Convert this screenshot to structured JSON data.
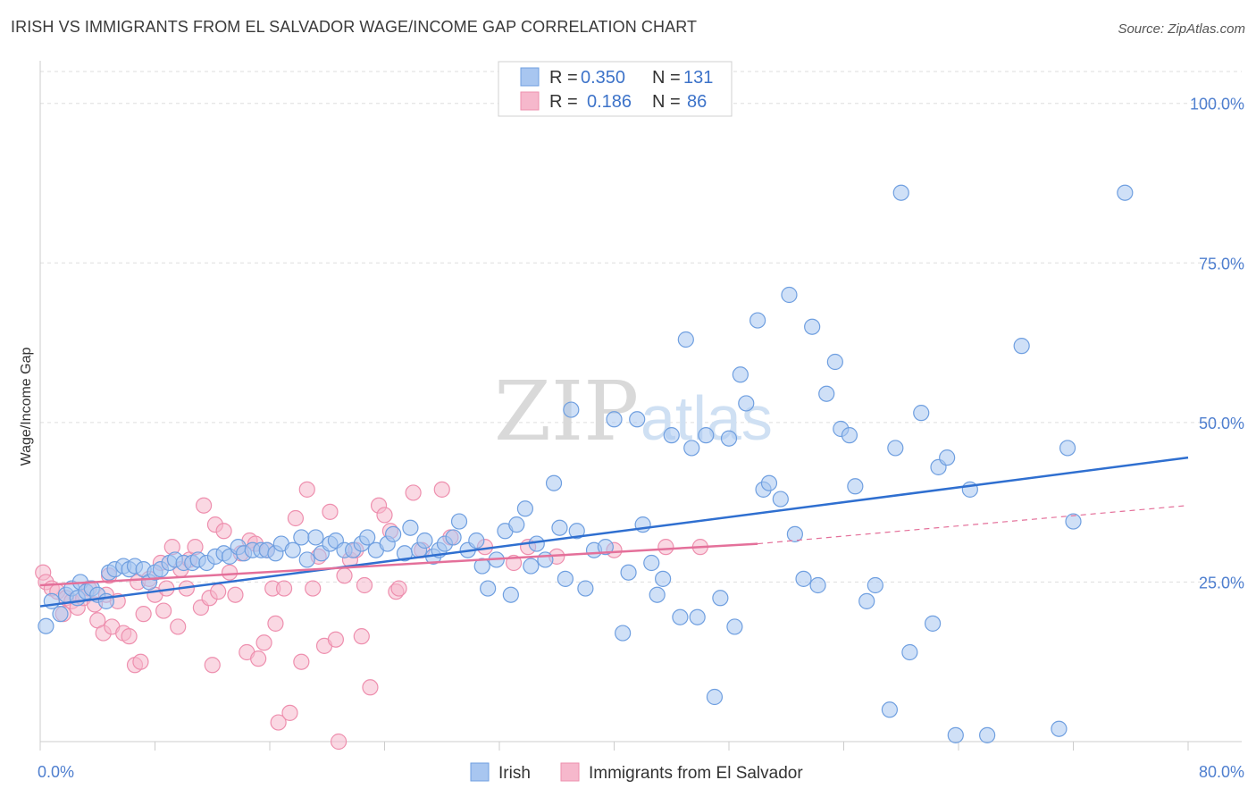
{
  "title": "IRISH VS IMMIGRANTS FROM EL SALVADOR WAGE/INCOME GAP CORRELATION CHART",
  "source": "Source: ZipAtlas.com",
  "watermark": {
    "part1": "ZIP",
    "part2": "atlas"
  },
  "colors": {
    "irish_fill": "#a8c6f0",
    "irish_stroke": "#6f9fe0",
    "irish_line": "#2f6fd0",
    "salv_fill": "#f6b8cc",
    "salv_stroke": "#ee8fae",
    "salv_line": "#e4709a",
    "grid": "#dddddd",
    "axis_text": "#4f7fcf"
  },
  "legend": {
    "r_label": "R =",
    "n_label": "N =",
    "irish": {
      "r": "0.350",
      "n": "131"
    },
    "salv": {
      "r": "0.186",
      "n": "86"
    }
  },
  "chart_data": {
    "type": "scatter",
    "ylabel": "Wage/Income Gap",
    "xlim": [
      0,
      80
    ],
    "ylim": [
      0,
      105
    ],
    "x_tick_labels": [
      "0.0%",
      "80.0%"
    ],
    "y_ticks": [
      {
        "value": 25,
        "label": "25.0%"
      },
      {
        "value": 50,
        "label": "50.0%"
      },
      {
        "value": 75,
        "label": "75.0%"
      },
      {
        "value": 100,
        "label": "100.0%"
      }
    ],
    "series": [
      {
        "name": "Irish",
        "trend": {
          "x0": 0,
          "y0": 21.2,
          "x1": 80,
          "y1": 44.5
        },
        "points": [
          [
            0.4,
            18.1
          ],
          [
            0.8,
            22.0
          ],
          [
            1.4,
            20.0
          ],
          [
            1.8,
            23.0
          ],
          [
            2.2,
            24.0
          ],
          [
            2.6,
            22.5
          ],
          [
            2.8,
            25.0
          ],
          [
            3.2,
            23.5
          ],
          [
            3.6,
            24.0
          ],
          [
            4.0,
            23.0
          ],
          [
            4.6,
            22.0
          ],
          [
            4.8,
            26.5
          ],
          [
            5.2,
            27.0
          ],
          [
            5.8,
            27.5
          ],
          [
            6.2,
            27.0
          ],
          [
            6.6,
            27.5
          ],
          [
            7.2,
            27.0
          ],
          [
            7.6,
            25.0
          ],
          [
            8.0,
            26.5
          ],
          [
            8.4,
            27.0
          ],
          [
            9.0,
            28.0
          ],
          [
            9.4,
            28.5
          ],
          [
            10.0,
            28.0
          ],
          [
            10.6,
            28.0
          ],
          [
            11.0,
            28.5
          ],
          [
            11.6,
            28.0
          ],
          [
            12.2,
            29.0
          ],
          [
            12.8,
            29.5
          ],
          [
            13.2,
            29.0
          ],
          [
            13.8,
            30.5
          ],
          [
            14.2,
            29.5
          ],
          [
            14.8,
            30.0
          ],
          [
            15.4,
            30.0
          ],
          [
            15.8,
            30.0
          ],
          [
            16.4,
            29.5
          ],
          [
            16.8,
            31.0
          ],
          [
            17.6,
            30.0
          ],
          [
            18.2,
            32.0
          ],
          [
            18.6,
            28.5
          ],
          [
            19.2,
            32.0
          ],
          [
            19.6,
            29.5
          ],
          [
            20.2,
            31.0
          ],
          [
            20.6,
            31.5
          ],
          [
            21.2,
            30.0
          ],
          [
            21.8,
            30.0
          ],
          [
            22.4,
            31.0
          ],
          [
            22.8,
            32.0
          ],
          [
            23.4,
            30.0
          ],
          [
            24.2,
            31.0
          ],
          [
            24.6,
            32.5
          ],
          [
            25.4,
            29.5
          ],
          [
            25.8,
            33.5
          ],
          [
            26.4,
            30.0
          ],
          [
            26.8,
            31.5
          ],
          [
            27.4,
            29.0
          ],
          [
            27.8,
            30.0
          ],
          [
            28.2,
            31.0
          ],
          [
            28.8,
            32.0
          ],
          [
            29.2,
            34.5
          ],
          [
            29.8,
            30.0
          ],
          [
            30.4,
            31.5
          ],
          [
            30.8,
            27.5
          ],
          [
            31.2,
            24.0
          ],
          [
            31.8,
            28.5
          ],
          [
            32.4,
            33.0
          ],
          [
            32.8,
            23.0
          ],
          [
            33.2,
            34.0
          ],
          [
            33.8,
            36.5
          ],
          [
            34.2,
            27.5
          ],
          [
            34.6,
            31.0
          ],
          [
            35.2,
            28.5
          ],
          [
            35.8,
            40.5
          ],
          [
            36.2,
            33.5
          ],
          [
            36.6,
            25.5
          ],
          [
            37.0,
            52.0
          ],
          [
            37.4,
            33.0
          ],
          [
            38.0,
            24.0
          ],
          [
            38.6,
            30.0
          ],
          [
            39.4,
            30.5
          ],
          [
            40.0,
            50.5
          ],
          [
            40.6,
            17.0
          ],
          [
            41.0,
            26.5
          ],
          [
            41.6,
            50.5
          ],
          [
            42.0,
            34.0
          ],
          [
            42.6,
            28.0
          ],
          [
            43.0,
            23.0
          ],
          [
            43.4,
            25.5
          ],
          [
            44.0,
            48.0
          ],
          [
            44.6,
            19.5
          ],
          [
            45.0,
            63.0
          ],
          [
            45.4,
            46.0
          ],
          [
            45.8,
            19.5
          ],
          [
            46.4,
            48.0
          ],
          [
            47.0,
            7.0
          ],
          [
            47.4,
            22.5
          ],
          [
            48.0,
            47.5
          ],
          [
            48.4,
            18.0
          ],
          [
            48.8,
            57.5
          ],
          [
            49.2,
            53.0
          ],
          [
            50.0,
            66.0
          ],
          [
            50.4,
            39.5
          ],
          [
            50.8,
            40.5
          ],
          [
            51.6,
            38.0
          ],
          [
            52.2,
            70.0
          ],
          [
            52.6,
            32.5
          ],
          [
            53.2,
            25.5
          ],
          [
            53.8,
            65.0
          ],
          [
            54.2,
            24.5
          ],
          [
            54.8,
            54.5
          ],
          [
            55.4,
            59.5
          ],
          [
            55.8,
            49.0
          ],
          [
            56.4,
            48.0
          ],
          [
            56.8,
            40.0
          ],
          [
            57.6,
            22.0
          ],
          [
            58.2,
            24.5
          ],
          [
            59.2,
            5.0
          ],
          [
            59.6,
            46.0
          ],
          [
            60.0,
            86.0
          ],
          [
            60.6,
            14.0
          ],
          [
            61.4,
            51.5
          ],
          [
            62.2,
            18.5
          ],
          [
            62.6,
            43.0
          ],
          [
            63.2,
            44.5
          ],
          [
            63.8,
            1.0
          ],
          [
            64.8,
            39.5
          ],
          [
            66.0,
            1.0
          ],
          [
            68.4,
            62.0
          ],
          [
            71.0,
            2.0
          ],
          [
            71.6,
            46.0
          ],
          [
            72.0,
            34.5
          ],
          [
            75.6,
            86.0
          ]
        ]
      },
      {
        "name": "Immigrants from El Salvador",
        "trend_solid": {
          "x0": 0,
          "y0": 24.5,
          "x1": 50,
          "y1": 31.0
        },
        "trend_dashed": {
          "x0": 50,
          "y0": 31.0,
          "x1": 80,
          "y1": 37.0
        },
        "points": [
          [
            0.2,
            26.5
          ],
          [
            0.4,
            25.0
          ],
          [
            0.8,
            24.0
          ],
          [
            1.2,
            23.5
          ],
          [
            1.6,
            20.0
          ],
          [
            1.8,
            22.5
          ],
          [
            2.2,
            22.0
          ],
          [
            2.6,
            21.0
          ],
          [
            3.0,
            22.5
          ],
          [
            3.4,
            24.0
          ],
          [
            3.8,
            21.5
          ],
          [
            4.0,
            19.0
          ],
          [
            4.4,
            17.0
          ],
          [
            4.6,
            23.0
          ],
          [
            4.8,
            26.0
          ],
          [
            5.0,
            18.0
          ],
          [
            5.4,
            22.0
          ],
          [
            5.8,
            17.0
          ],
          [
            6.2,
            16.5
          ],
          [
            6.6,
            12.0
          ],
          [
            6.8,
            25.0
          ],
          [
            7.0,
            12.5
          ],
          [
            7.2,
            20.0
          ],
          [
            7.6,
            25.5
          ],
          [
            8.0,
            23.0
          ],
          [
            8.4,
            28.0
          ],
          [
            8.6,
            20.5
          ],
          [
            8.8,
            24.0
          ],
          [
            9.2,
            30.5
          ],
          [
            9.6,
            18.0
          ],
          [
            9.8,
            27.0
          ],
          [
            10.2,
            24.0
          ],
          [
            10.4,
            28.5
          ],
          [
            10.8,
            30.5
          ],
          [
            11.2,
            21.0
          ],
          [
            11.4,
            37.0
          ],
          [
            11.8,
            22.5
          ],
          [
            12.0,
            12.0
          ],
          [
            12.2,
            34.0
          ],
          [
            12.4,
            23.5
          ],
          [
            12.8,
            33.0
          ],
          [
            13.2,
            26.5
          ],
          [
            13.6,
            23.0
          ],
          [
            14.0,
            29.5
          ],
          [
            14.4,
            14.0
          ],
          [
            14.6,
            31.5
          ],
          [
            15.0,
            31.0
          ],
          [
            15.2,
            13.0
          ],
          [
            15.6,
            15.5
          ],
          [
            15.8,
            30.0
          ],
          [
            16.2,
            24.0
          ],
          [
            16.4,
            18.5
          ],
          [
            16.6,
            3.0
          ],
          [
            17.0,
            24.0
          ],
          [
            17.4,
            4.5
          ],
          [
            17.8,
            35.0
          ],
          [
            18.2,
            12.5
          ],
          [
            18.6,
            39.5
          ],
          [
            19.0,
            24.0
          ],
          [
            19.4,
            29.0
          ],
          [
            19.8,
            15.0
          ],
          [
            20.2,
            36.0
          ],
          [
            20.6,
            16.0
          ],
          [
            20.8,
            0.0
          ],
          [
            21.2,
            26.0
          ],
          [
            21.6,
            28.5
          ],
          [
            22.0,
            30.0
          ],
          [
            22.4,
            16.5
          ],
          [
            22.6,
            24.5
          ],
          [
            23.0,
            8.5
          ],
          [
            23.6,
            37.0
          ],
          [
            24.0,
            35.5
          ],
          [
            24.4,
            33.0
          ],
          [
            24.8,
            23.5
          ],
          [
            25.0,
            24.0
          ],
          [
            26.0,
            39.0
          ],
          [
            26.6,
            30.0
          ],
          [
            28.0,
            39.5
          ],
          [
            28.6,
            32.0
          ],
          [
            31.0,
            30.5
          ],
          [
            33.0,
            28.0
          ],
          [
            34.0,
            30.5
          ],
          [
            36.0,
            29.0
          ],
          [
            40.0,
            30.0
          ],
          [
            43.6,
            30.5
          ],
          [
            46.0,
            30.5
          ]
        ]
      }
    ]
  }
}
